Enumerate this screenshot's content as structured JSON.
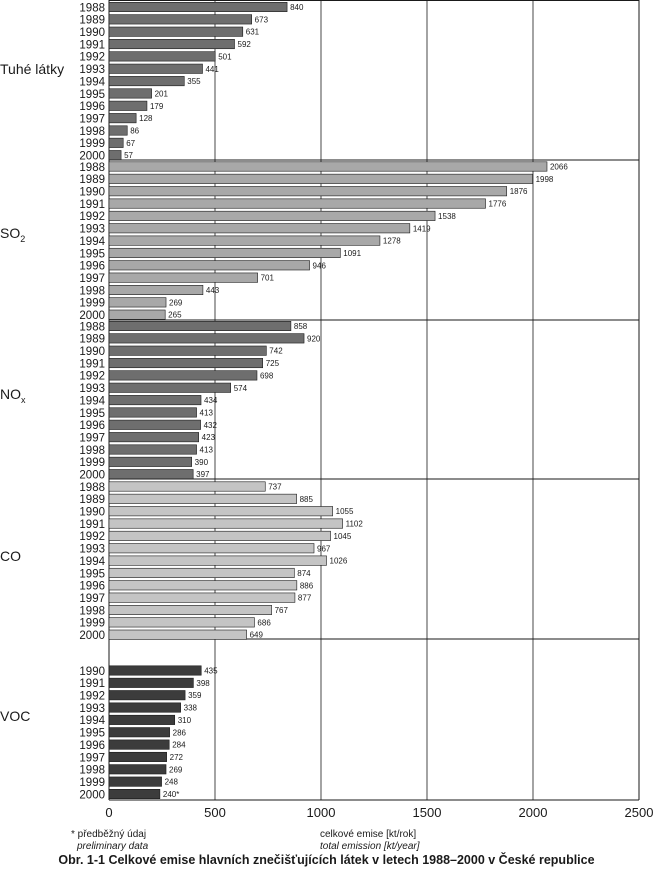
{
  "chart_data": {
    "type": "bar",
    "orientation": "horizontal",
    "xlim": [
      0,
      2500
    ],
    "xticks": [
      "0",
      "500",
      "1000",
      "1500",
      "2000",
      "2500"
    ],
    "grid": true,
    "groups": [
      {
        "label": "Tuhé látky",
        "label_main": "Tuhé látky",
        "label_sub": "",
        "color": "#6e6e6e",
        "categories": [
          "1988",
          "1989",
          "1990",
          "1991",
          "1992",
          "1993",
          "1994",
          "1995",
          "1996",
          "1997",
          "1998",
          "1999",
          "2000"
        ],
        "values": [
          840,
          673,
          631,
          592,
          501,
          441,
          355,
          201,
          179,
          128,
          86,
          67,
          57
        ],
        "value_labels": [
          "840",
          "673",
          "631",
          "592",
          "501",
          "441",
          "355",
          "201",
          "179",
          "128",
          "86",
          "67",
          "57"
        ]
      },
      {
        "label": "SO2",
        "label_main": "SO",
        "label_sub": "2",
        "color": "#a8a8a8",
        "categories": [
          "1988",
          "1989",
          "1990",
          "1991",
          "1992",
          "1993",
          "1994",
          "1995",
          "1996",
          "1997",
          "1998",
          "1999",
          "2000"
        ],
        "values": [
          2066,
          1998,
          1876,
          1776,
          1538,
          1419,
          1278,
          1091,
          946,
          701,
          443,
          269,
          265
        ],
        "value_labels": [
          "2066",
          "1998",
          "1876",
          "1776",
          "1538",
          "1419",
          "1278",
          "1091",
          "946",
          "701",
          "443",
          "269",
          "265"
        ]
      },
      {
        "label": "NOx",
        "label_main": "NO",
        "label_sub": "x",
        "color": "#6e6e6e",
        "categories": [
          "1988",
          "1989",
          "1990",
          "1991",
          "1992",
          "1993",
          "1994",
          "1995",
          "1996",
          "1997",
          "1998",
          "1999",
          "2000"
        ],
        "values": [
          858,
          920,
          742,
          725,
          698,
          574,
          434,
          413,
          432,
          423,
          413,
          390,
          397
        ],
        "value_labels": [
          "858",
          "920",
          "742",
          "725",
          "698",
          "574",
          "434",
          "413",
          "432",
          "423",
          "413",
          "390",
          "397"
        ]
      },
      {
        "label": "CO",
        "label_main": "CO",
        "label_sub": "",
        "color": "#c4c4c4",
        "categories": [
          "1988",
          "1989",
          "1990",
          "1991",
          "1992",
          "1993",
          "1994",
          "1995",
          "1996",
          "1997",
          "1998",
          "1999",
          "2000"
        ],
        "values": [
          737,
          885,
          1055,
          1102,
          1045,
          967,
          1026,
          874,
          886,
          877,
          767,
          686,
          649
        ],
        "value_labels": [
          "737",
          "885",
          "1055",
          "1102",
          "1045",
          "967",
          "1026",
          "874",
          "886",
          "877",
          "767",
          "686",
          "649"
        ]
      },
      {
        "label": "VOC",
        "label_main": "VOC",
        "label_sub": "",
        "color": "#3c3c3c",
        "categories": [
          "1990",
          "1991",
          "1992",
          "1993",
          "1994",
          "1995",
          "1996",
          "1997",
          "1998",
          "1999",
          "2000"
        ],
        "values": [
          435,
          398,
          359,
          338,
          310,
          286,
          284,
          272,
          269,
          248,
          240
        ],
        "value_labels": [
          "435",
          "398",
          "359",
          "338",
          "310",
          "286",
          "284",
          "272",
          "269",
          "248",
          "240*"
        ]
      }
    ],
    "footnote": {
      "line1": "* předběžný údaj",
      "line2": "preliminary data"
    },
    "xlabel": {
      "line1": "celkové emise [kt/rok]",
      "line2": "total emission [kt/year]"
    },
    "caption": "Obr. 1-1  Celkové emise hlavních znečišťujících látek v letech 1988–2000 v České republice"
  }
}
